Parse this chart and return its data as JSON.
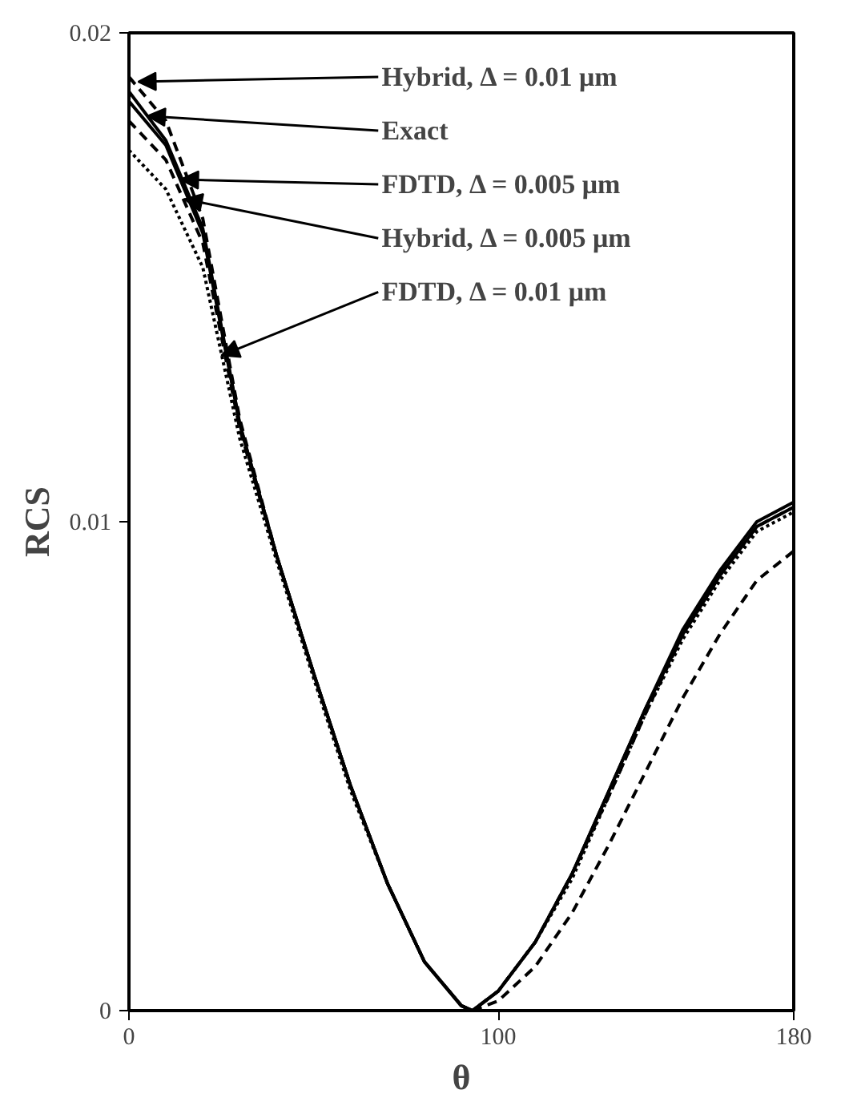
{
  "chart_data": {
    "type": "line",
    "xlabel": "θ",
    "ylabel": "RCS",
    "xlim": [
      0,
      180
    ],
    "ylim": [
      0,
      0.02
    ],
    "xticks": [
      0,
      100,
      180
    ],
    "yticks": [
      0,
      0.01,
      0.02
    ],
    "grid": false,
    "marker": "none",
    "x": [
      0,
      10,
      20,
      30,
      40,
      50,
      60,
      70,
      80,
      90,
      93,
      100,
      110,
      120,
      130,
      140,
      150,
      160,
      170,
      180
    ],
    "series": [
      {
        "color": "#000000",
        "line_style": "dashed",
        "values": [
          0.0191,
          0.0182,
          0.0162,
          0.0121,
          0.0093,
          0.0069,
          0.0046,
          0.0026,
          0.001,
          0.0001,
          0.0,
          0.0002,
          0.0009,
          0.002,
          0.0034,
          0.0049,
          0.0064,
          0.0077,
          0.0088,
          0.0094
        ]
      },
      {
        "color": "#000000",
        "line_style": "solid",
        "values": [
          0.0188,
          0.0178,
          0.016,
          0.012,
          0.0093,
          0.0069,
          0.0046,
          0.0026,
          0.001,
          0.0001,
          0.0,
          0.0004,
          0.0014,
          0.0028,
          0.0045,
          0.0062,
          0.0078,
          0.009,
          0.01,
          0.0104
        ]
      },
      {
        "color": "#000000",
        "line_style": "solid",
        "values": [
          0.0186,
          0.0177,
          0.0159,
          0.012,
          0.0093,
          0.0069,
          0.0046,
          0.0026,
          0.001,
          0.0001,
          0.0,
          0.0004,
          0.0014,
          0.0028,
          0.0045,
          0.0062,
          0.0077,
          0.0089,
          0.0099,
          0.0103
        ]
      },
      {
        "color": "#000000",
        "line_style": "dashed",
        "values": [
          0.0182,
          0.0174,
          0.0157,
          0.0119,
          0.0093,
          0.0069,
          0.0046,
          0.0026,
          0.001,
          0.0001,
          0.0,
          0.0004,
          0.0014,
          0.0028,
          0.0044,
          0.0061,
          0.0077,
          0.0089,
          0.0099,
          0.0103
        ]
      },
      {
        "color": "#000000",
        "line_style": "dotted",
        "values": [
          0.0176,
          0.0168,
          0.0152,
          0.0117,
          0.0092,
          0.0068,
          0.0045,
          0.0026,
          0.001,
          0.0001,
          0.0,
          0.0004,
          0.0014,
          0.0027,
          0.0044,
          0.0061,
          0.0076,
          0.0088,
          0.0098,
          0.0102
        ]
      }
    ],
    "annotations": [
      {
        "text": "Hybrid, Δ = 0.01 μm",
        "x": 2.5,
        "y": 0.019
      },
      {
        "text": "Exact",
        "x": 5,
        "y": 0.0183
      },
      {
        "text": "FDTD, Δ = 0.005 μm",
        "x": 14,
        "y": 0.017
      },
      {
        "text": "Hybrid, Δ = 0.005 μm",
        "x": 15,
        "y": 0.0166
      },
      {
        "text": "FDTD, Δ = 0.01 μm",
        "x": 25,
        "y": 0.0134
      }
    ]
  }
}
